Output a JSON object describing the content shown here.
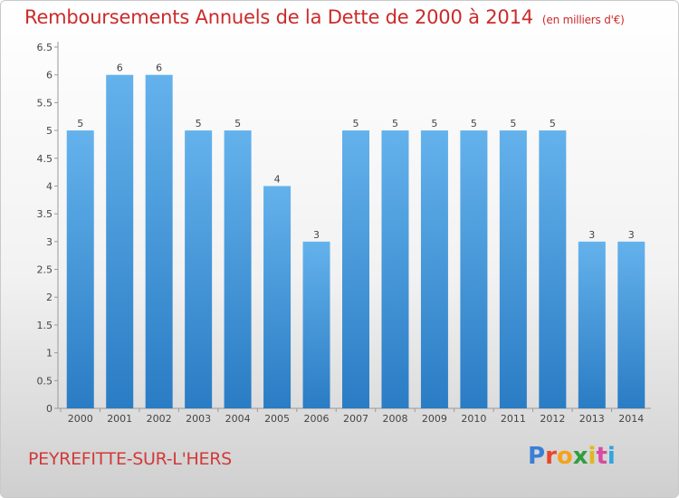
{
  "title": "Remboursements Annuels de la Dette de 2000 à 2014",
  "unit": "(en milliers d'€)",
  "commune": "PEYREFITTE-SUR-L'HERS",
  "logo": {
    "letters": [
      "P",
      "r",
      "o",
      "x",
      "i",
      "t",
      "i"
    ]
  },
  "colors": {
    "bar_top": "#64b2ec",
    "bar_bottom": "#2a7cc4",
    "title": "#cc2a2a"
  },
  "chart_data": {
    "type": "bar",
    "categories": [
      "2000",
      "2001",
      "2002",
      "2003",
      "2004",
      "2005",
      "2006",
      "2007",
      "2008",
      "2009",
      "2010",
      "2011",
      "2012",
      "2013",
      "2014"
    ],
    "values": [
      5,
      6,
      6,
      5,
      5,
      4,
      3,
      5,
      5,
      5,
      5,
      5,
      5,
      3,
      3
    ],
    "data_labels": [
      "5",
      "6",
      "6",
      "5",
      "5",
      "4",
      "3",
      "5",
      "5",
      "5",
      "5",
      "5",
      "5",
      "3",
      "3"
    ],
    "yticks": [
      "0",
      "0.5",
      "1",
      "1.5",
      "2",
      "2.5",
      "3",
      "3.5",
      "4",
      "4.5",
      "5",
      "5.5",
      "6",
      "6.5"
    ],
    "ylim": [
      0,
      6.5
    ],
    "grid": false
  }
}
